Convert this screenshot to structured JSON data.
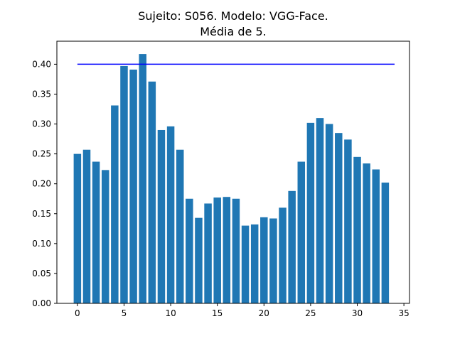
{
  "chart_data": {
    "type": "bar",
    "title": "Sujeito: S056. Modelo: VGG-Face.",
    "subtitle": "Média de 5.",
    "xlabel": "",
    "ylabel": "",
    "x": [
      0,
      1,
      2,
      3,
      4,
      5,
      6,
      7,
      8,
      9,
      10,
      11,
      12,
      13,
      14,
      15,
      16,
      17,
      18,
      19,
      20,
      21,
      22,
      23,
      24,
      25,
      26,
      27,
      28,
      29,
      30,
      31,
      32,
      33
    ],
    "values": [
      0.25,
      0.257,
      0.237,
      0.223,
      0.331,
      0.397,
      0.391,
      0.417,
      0.371,
      0.29,
      0.296,
      0.257,
      0.175,
      0.143,
      0.167,
      0.177,
      0.178,
      0.175,
      0.13,
      0.132,
      0.144,
      0.142,
      0.16,
      0.188,
      0.237,
      0.302,
      0.31,
      0.3,
      0.285,
      0.274,
      0.245,
      0.234,
      0.224,
      0.202
    ],
    "xlim": [
      -2.2,
      35.6
    ],
    "ylim": [
      0,
      0.4385
    ],
    "xticks": [
      "0",
      "5",
      "10",
      "15",
      "20",
      "25",
      "30",
      "35"
    ],
    "yticks": [
      "0.00",
      "0.05",
      "0.10",
      "0.15",
      "0.20",
      "0.25",
      "0.30",
      "0.35",
      "0.40"
    ],
    "reference_line": {
      "y": 0.4,
      "x_start": 0,
      "x_end": 34,
      "color": "#0000ff"
    },
    "bar_color": "#1f77b4",
    "grid": false,
    "legend": "none"
  }
}
